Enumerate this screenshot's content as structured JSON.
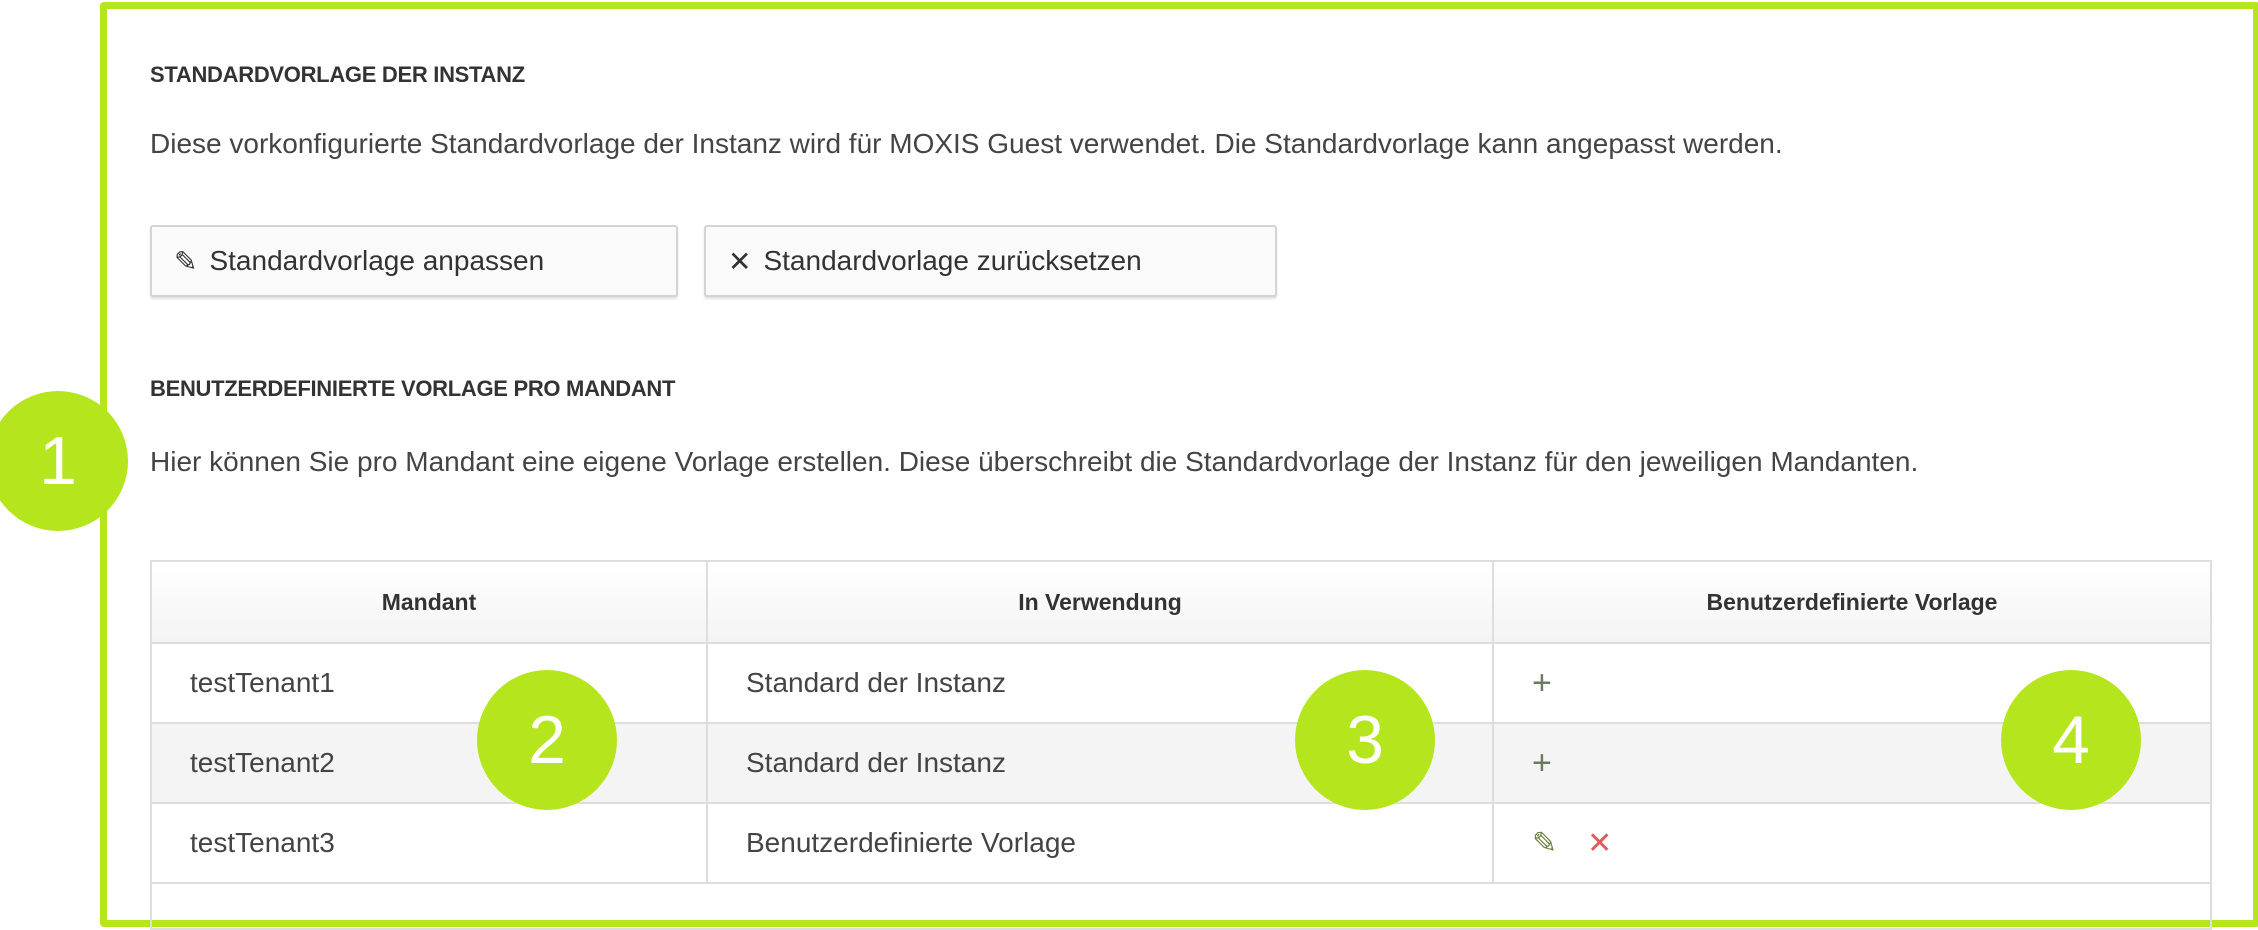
{
  "section_default": {
    "heading": "STANDARDVORLAGE DER INSTANZ",
    "description": "Diese vorkonfigurierte Standardvorlage der Instanz wird für MOXIS Guest verwendet. Die Standardvorlage kann angepasst werden.",
    "edit_button": "Standardvorlage anpassen",
    "reset_button": "Standardvorlage zurücksetzen"
  },
  "section_custom": {
    "heading": "BENUTZERDEFINIERTE VORLAGE PRO MANDANT",
    "description": "Hier können Sie pro Mandant eine eigene Vorlage erstellen. Diese überschreibt die Standardvorlage der Instanz für den jeweiligen Mandanten."
  },
  "table": {
    "headers": [
      "Mandant",
      "In Verwendung",
      "Benutzerdefinierte Vorlage"
    ],
    "rows": [
      {
        "tenant": "testTenant1",
        "in_use": "Standard der Instanz",
        "actions": [
          "plus-icon"
        ]
      },
      {
        "tenant": "testTenant2",
        "in_use": "Standard der Instanz",
        "actions": [
          "plus-icon"
        ]
      },
      {
        "tenant": "testTenant3",
        "in_use": "Benutzerdefinierte Vorlage",
        "actions": [
          "pencil-icon",
          "close-icon"
        ]
      }
    ]
  },
  "callouts": [
    "1",
    "2",
    "3",
    "4"
  ],
  "colors": {
    "accent": "#b5e61d",
    "delete": "#e35a5a",
    "icon": "#6d7a62"
  }
}
